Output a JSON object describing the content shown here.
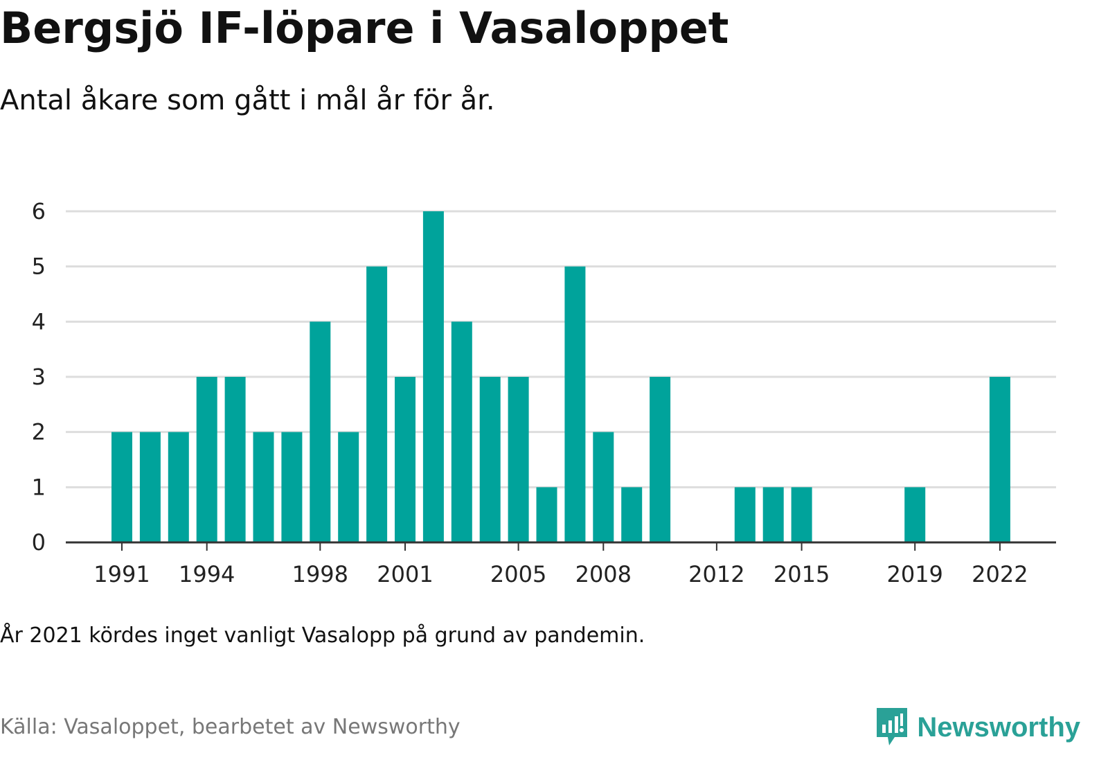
{
  "header": {
    "title": "Bergsjö IF-löpare i Vasaloppet",
    "subtitle": "Antal åkare som gått i mål år för år."
  },
  "footer": {
    "note": "År 2021 kördes inget vanligt Vasalopp på grund av pandemin.",
    "source": "Källa: Vasaloppet, bearbetet av Newsworthy",
    "brand": "Newsworthy",
    "brand_icon": "newsworthy-logo-icon"
  },
  "colors": {
    "bar": "#00A39B",
    "grid": "#dddddd",
    "axis": "#333333",
    "brand": "#2aa197"
  },
  "chart_data": {
    "type": "bar",
    "categories": [
      1991,
      1992,
      1993,
      1994,
      1995,
      1996,
      1997,
      1998,
      1999,
      2000,
      2001,
      2002,
      2003,
      2004,
      2005,
      2006,
      2007,
      2008,
      2009,
      2010,
      2011,
      2012,
      2013,
      2014,
      2015,
      2016,
      2017,
      2018,
      2019,
      2020,
      2021,
      2022
    ],
    "values": [
      2,
      2,
      2,
      3,
      3,
      2,
      2,
      4,
      2,
      5,
      3,
      6,
      4,
      3,
      3,
      1,
      5,
      2,
      1,
      3,
      0,
      0,
      1,
      1,
      1,
      0,
      0,
      0,
      1,
      0,
      0,
      3
    ],
    "x_tick_labels": [
      "1991",
      "1994",
      "1998",
      "2001",
      "2005",
      "2008",
      "2012",
      "2015",
      "2019",
      "2022"
    ],
    "y_ticks": [
      0,
      1,
      2,
      3,
      4,
      5,
      6
    ],
    "ylim": [
      0,
      6
    ],
    "grid": true,
    "xlabel": "",
    "ylabel": ""
  }
}
